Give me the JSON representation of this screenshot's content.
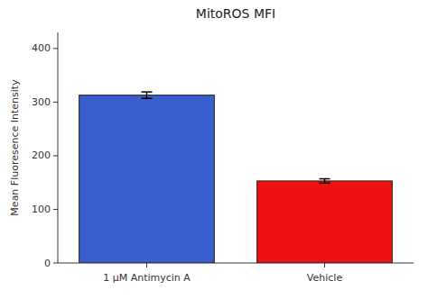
{
  "chart_data": {
    "type": "bar",
    "title": "MitoROS MFI",
    "ylabel": "Mean Fluoresence Intensity",
    "categories": [
      "1 μM Antimycin A",
      "Vehicle"
    ],
    "values": [
      313,
      153
    ],
    "errors": [
      6,
      4
    ],
    "colors": [
      "#3a5fcd",
      "#ee1111"
    ],
    "ylim": [
      0,
      430
    ],
    "yticks": [
      0,
      100,
      200,
      300,
      400
    ],
    "grid": false
  }
}
